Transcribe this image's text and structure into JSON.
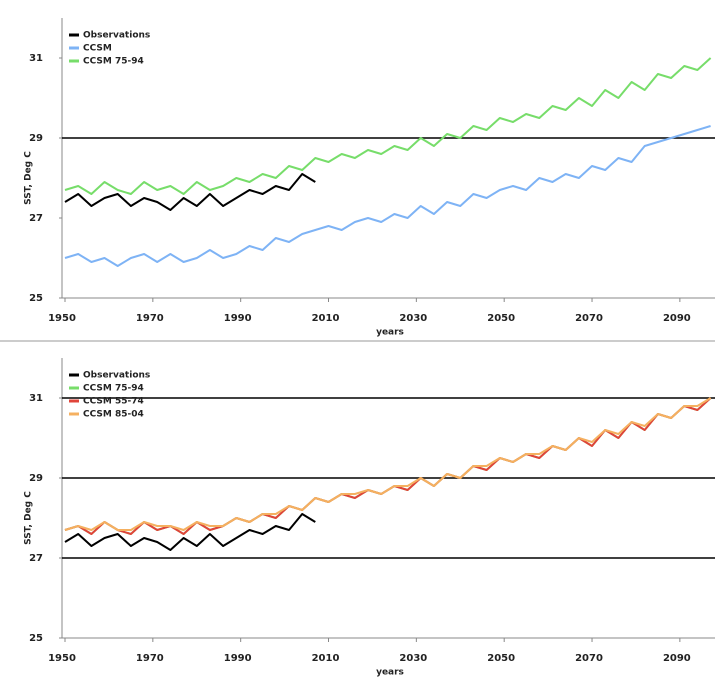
{
  "chart_data": [
    {
      "type": "line",
      "x_label": "years",
      "y_label": "SST, Deg C",
      "xlim": [
        1950,
        2098
      ],
      "ylim": [
        25,
        32
      ],
      "xticks": [
        1950,
        1970,
        1990,
        2010,
        2030,
        2050,
        2070,
        2090
      ],
      "yticks": [
        25,
        27,
        29,
        31
      ],
      "hlines": [
        29
      ],
      "x": [
        1950,
        1953,
        1956,
        1959,
        1962,
        1965,
        1968,
        1971,
        1974,
        1977,
        1980,
        1983,
        1986,
        1989,
        1992,
        1995,
        1998,
        2001,
        2004,
        2007,
        2010,
        2013,
        2016,
        2019,
        2022,
        2025,
        2028,
        2031,
        2034,
        2037,
        2040,
        2043,
        2046,
        2049,
        2052,
        2055,
        2058,
        2061,
        2064,
        2067,
        2070,
        2073,
        2076,
        2079,
        2082,
        2085,
        2088,
        2091,
        2094,
        2097
      ],
      "series": [
        {
          "name": "Observations",
          "color": "#000000",
          "values": [
            27.4,
            27.6,
            27.3,
            27.5,
            27.6,
            27.3,
            27.5,
            27.4,
            27.2,
            27.5,
            27.3,
            27.6,
            27.3,
            27.5,
            27.7,
            27.6,
            27.8,
            27.7,
            28.1,
            27.9,
            null,
            null,
            null,
            null,
            null,
            null,
            null,
            null,
            null,
            null,
            null,
            null,
            null,
            null,
            null,
            null,
            null,
            null,
            null,
            null,
            null,
            null,
            null,
            null,
            null,
            null,
            null,
            null,
            null,
            null
          ]
        },
        {
          "name": "CCSM",
          "color": "#7eb3f5",
          "values": [
            26.0,
            26.1,
            25.9,
            26.0,
            25.8,
            26.0,
            26.1,
            25.9,
            26.1,
            25.9,
            26.0,
            26.2,
            26.0,
            26.1,
            26.3,
            26.2,
            26.5,
            26.4,
            26.6,
            26.7,
            26.8,
            26.7,
            26.9,
            27.0,
            26.9,
            27.1,
            27.0,
            27.3,
            27.1,
            27.4,
            27.3,
            27.6,
            27.5,
            27.7,
            27.8,
            27.7,
            28.0,
            27.9,
            28.1,
            28.0,
            28.3,
            28.2,
            28.5,
            28.4,
            28.8,
            28.9,
            29.0,
            29.1,
            29.2,
            29.3
          ]
        },
        {
          "name": "CCSM 75-94",
          "color": "#77dd6a",
          "values": [
            27.7,
            27.8,
            27.6,
            27.9,
            27.7,
            27.6,
            27.9,
            27.7,
            27.8,
            27.6,
            27.9,
            27.7,
            27.8,
            28.0,
            27.9,
            28.1,
            28.0,
            28.3,
            28.2,
            28.5,
            28.4,
            28.6,
            28.5,
            28.7,
            28.6,
            28.8,
            28.7,
            29.0,
            28.8,
            29.1,
            29.0,
            29.3,
            29.2,
            29.5,
            29.4,
            29.6,
            29.5,
            29.8,
            29.7,
            30.0,
            29.8,
            30.2,
            30.0,
            30.4,
            30.2,
            30.6,
            30.5,
            30.8,
            30.7,
            31.0
          ]
        }
      ]
    },
    {
      "type": "line",
      "x_label": "years",
      "y_label": "SST, Deg C",
      "xlim": [
        1950,
        2098
      ],
      "ylim": [
        25,
        32
      ],
      "xticks": [
        1950,
        1970,
        1990,
        2010,
        2030,
        2050,
        2070,
        2090
      ],
      "yticks": [
        25,
        27,
        29,
        31
      ],
      "hlines": [
        27,
        29,
        31
      ],
      "x": [
        1950,
        1953,
        1956,
        1959,
        1962,
        1965,
        1968,
        1971,
        1974,
        1977,
        1980,
        1983,
        1986,
        1989,
        1992,
        1995,
        1998,
        2001,
        2004,
        2007,
        2010,
        2013,
        2016,
        2019,
        2022,
        2025,
        2028,
        2031,
        2034,
        2037,
        2040,
        2043,
        2046,
        2049,
        2052,
        2055,
        2058,
        2061,
        2064,
        2067,
        2070,
        2073,
        2076,
        2079,
        2082,
        2085,
        2088,
        2091,
        2094,
        2097
      ],
      "series": [
        {
          "name": "Observations",
          "color": "#000000",
          "values": [
            27.4,
            27.6,
            27.3,
            27.5,
            27.6,
            27.3,
            27.5,
            27.4,
            27.2,
            27.5,
            27.3,
            27.6,
            27.3,
            27.5,
            27.7,
            27.6,
            27.8,
            27.7,
            28.1,
            27.9,
            null,
            null,
            null,
            null,
            null,
            null,
            null,
            null,
            null,
            null,
            null,
            null,
            null,
            null,
            null,
            null,
            null,
            null,
            null,
            null,
            null,
            null,
            null,
            null,
            null,
            null,
            null,
            null,
            null,
            null
          ]
        },
        {
          "name": "CCSM 75-94",
          "color": "#77dd6a",
          "values": [
            27.7,
            27.8,
            27.6,
            27.9,
            27.7,
            27.6,
            27.9,
            27.7,
            27.8,
            27.6,
            27.9,
            27.7,
            27.8,
            28.0,
            27.9,
            28.1,
            28.0,
            28.3,
            28.2,
            28.5,
            28.4,
            28.6,
            28.5,
            28.7,
            28.6,
            28.8,
            28.7,
            29.0,
            28.8,
            29.1,
            29.0,
            29.3,
            29.2,
            29.5,
            29.4,
            29.6,
            29.5,
            29.8,
            29.7,
            30.0,
            29.8,
            30.2,
            30.0,
            30.4,
            30.2,
            30.6,
            30.5,
            30.8,
            30.7,
            31.0
          ]
        },
        {
          "name": "CCSM 55-74",
          "color": "#e0443a",
          "values": [
            27.7,
            27.8,
            27.6,
            27.9,
            27.7,
            27.6,
            27.9,
            27.7,
            27.8,
            27.6,
            27.9,
            27.7,
            27.8,
            28.0,
            27.9,
            28.1,
            28.0,
            28.3,
            28.2,
            28.5,
            28.4,
            28.6,
            28.5,
            28.7,
            28.6,
            28.8,
            28.7,
            29.0,
            28.8,
            29.1,
            29.0,
            29.3,
            29.2,
            29.5,
            29.4,
            29.6,
            29.5,
            29.8,
            29.7,
            30.0,
            29.8,
            30.2,
            30.0,
            30.4,
            30.2,
            30.6,
            30.5,
            30.8,
            30.7,
            31.0
          ]
        },
        {
          "name": "CCSM 85-04",
          "color": "#f5b060",
          "values": [
            27.7,
            27.8,
            27.7,
            27.9,
            27.7,
            27.7,
            27.9,
            27.8,
            27.8,
            27.7,
            27.9,
            27.8,
            27.8,
            28.0,
            27.9,
            28.1,
            28.1,
            28.3,
            28.2,
            28.5,
            28.4,
            28.6,
            28.6,
            28.7,
            28.6,
            28.8,
            28.8,
            29.0,
            28.8,
            29.1,
            29.0,
            29.3,
            29.3,
            29.5,
            29.4,
            29.6,
            29.6,
            29.8,
            29.7,
            30.0,
            29.9,
            30.2,
            30.1,
            30.4,
            30.3,
            30.6,
            30.5,
            30.8,
            30.8,
            31.0
          ]
        }
      ]
    }
  ]
}
